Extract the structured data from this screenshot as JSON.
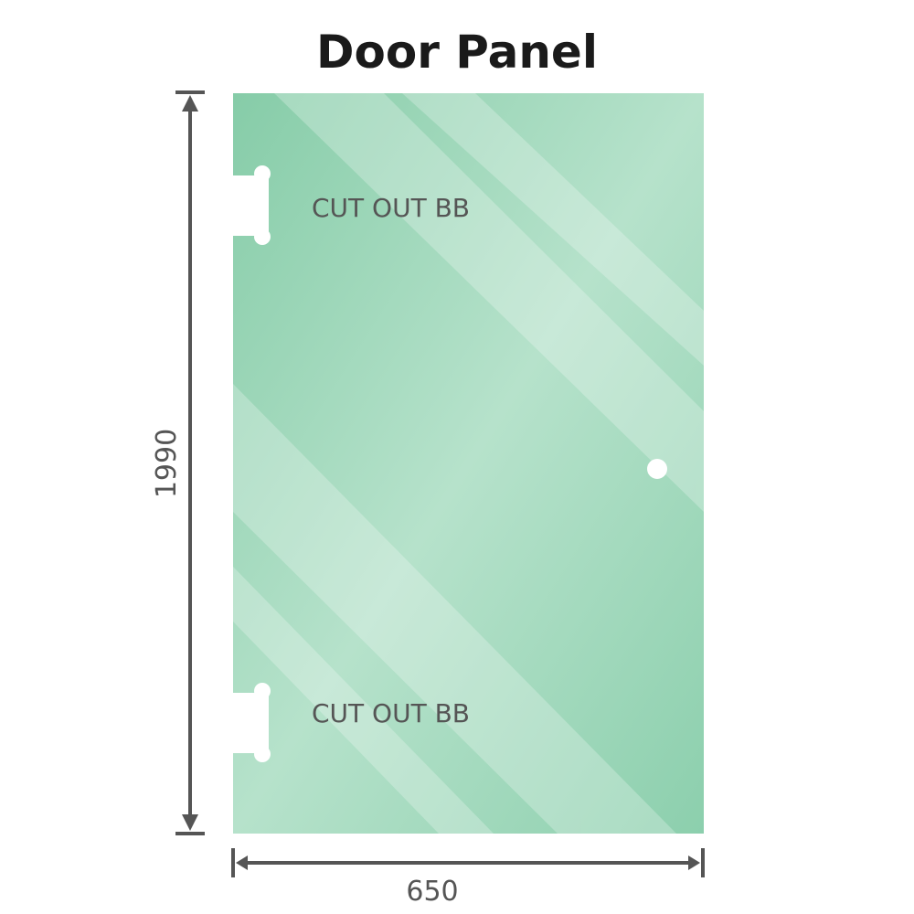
{
  "title": "Door Panel",
  "panel": {
    "glass_color": "#8ccfad",
    "cutouts": [
      {
        "label": "CUT OUT BB"
      },
      {
        "label": "CUT OUT BB"
      }
    ]
  },
  "dimensions": {
    "height": "1990",
    "width": "650"
  },
  "colors": {
    "dimension_line": "#555555",
    "text": "#555555"
  }
}
